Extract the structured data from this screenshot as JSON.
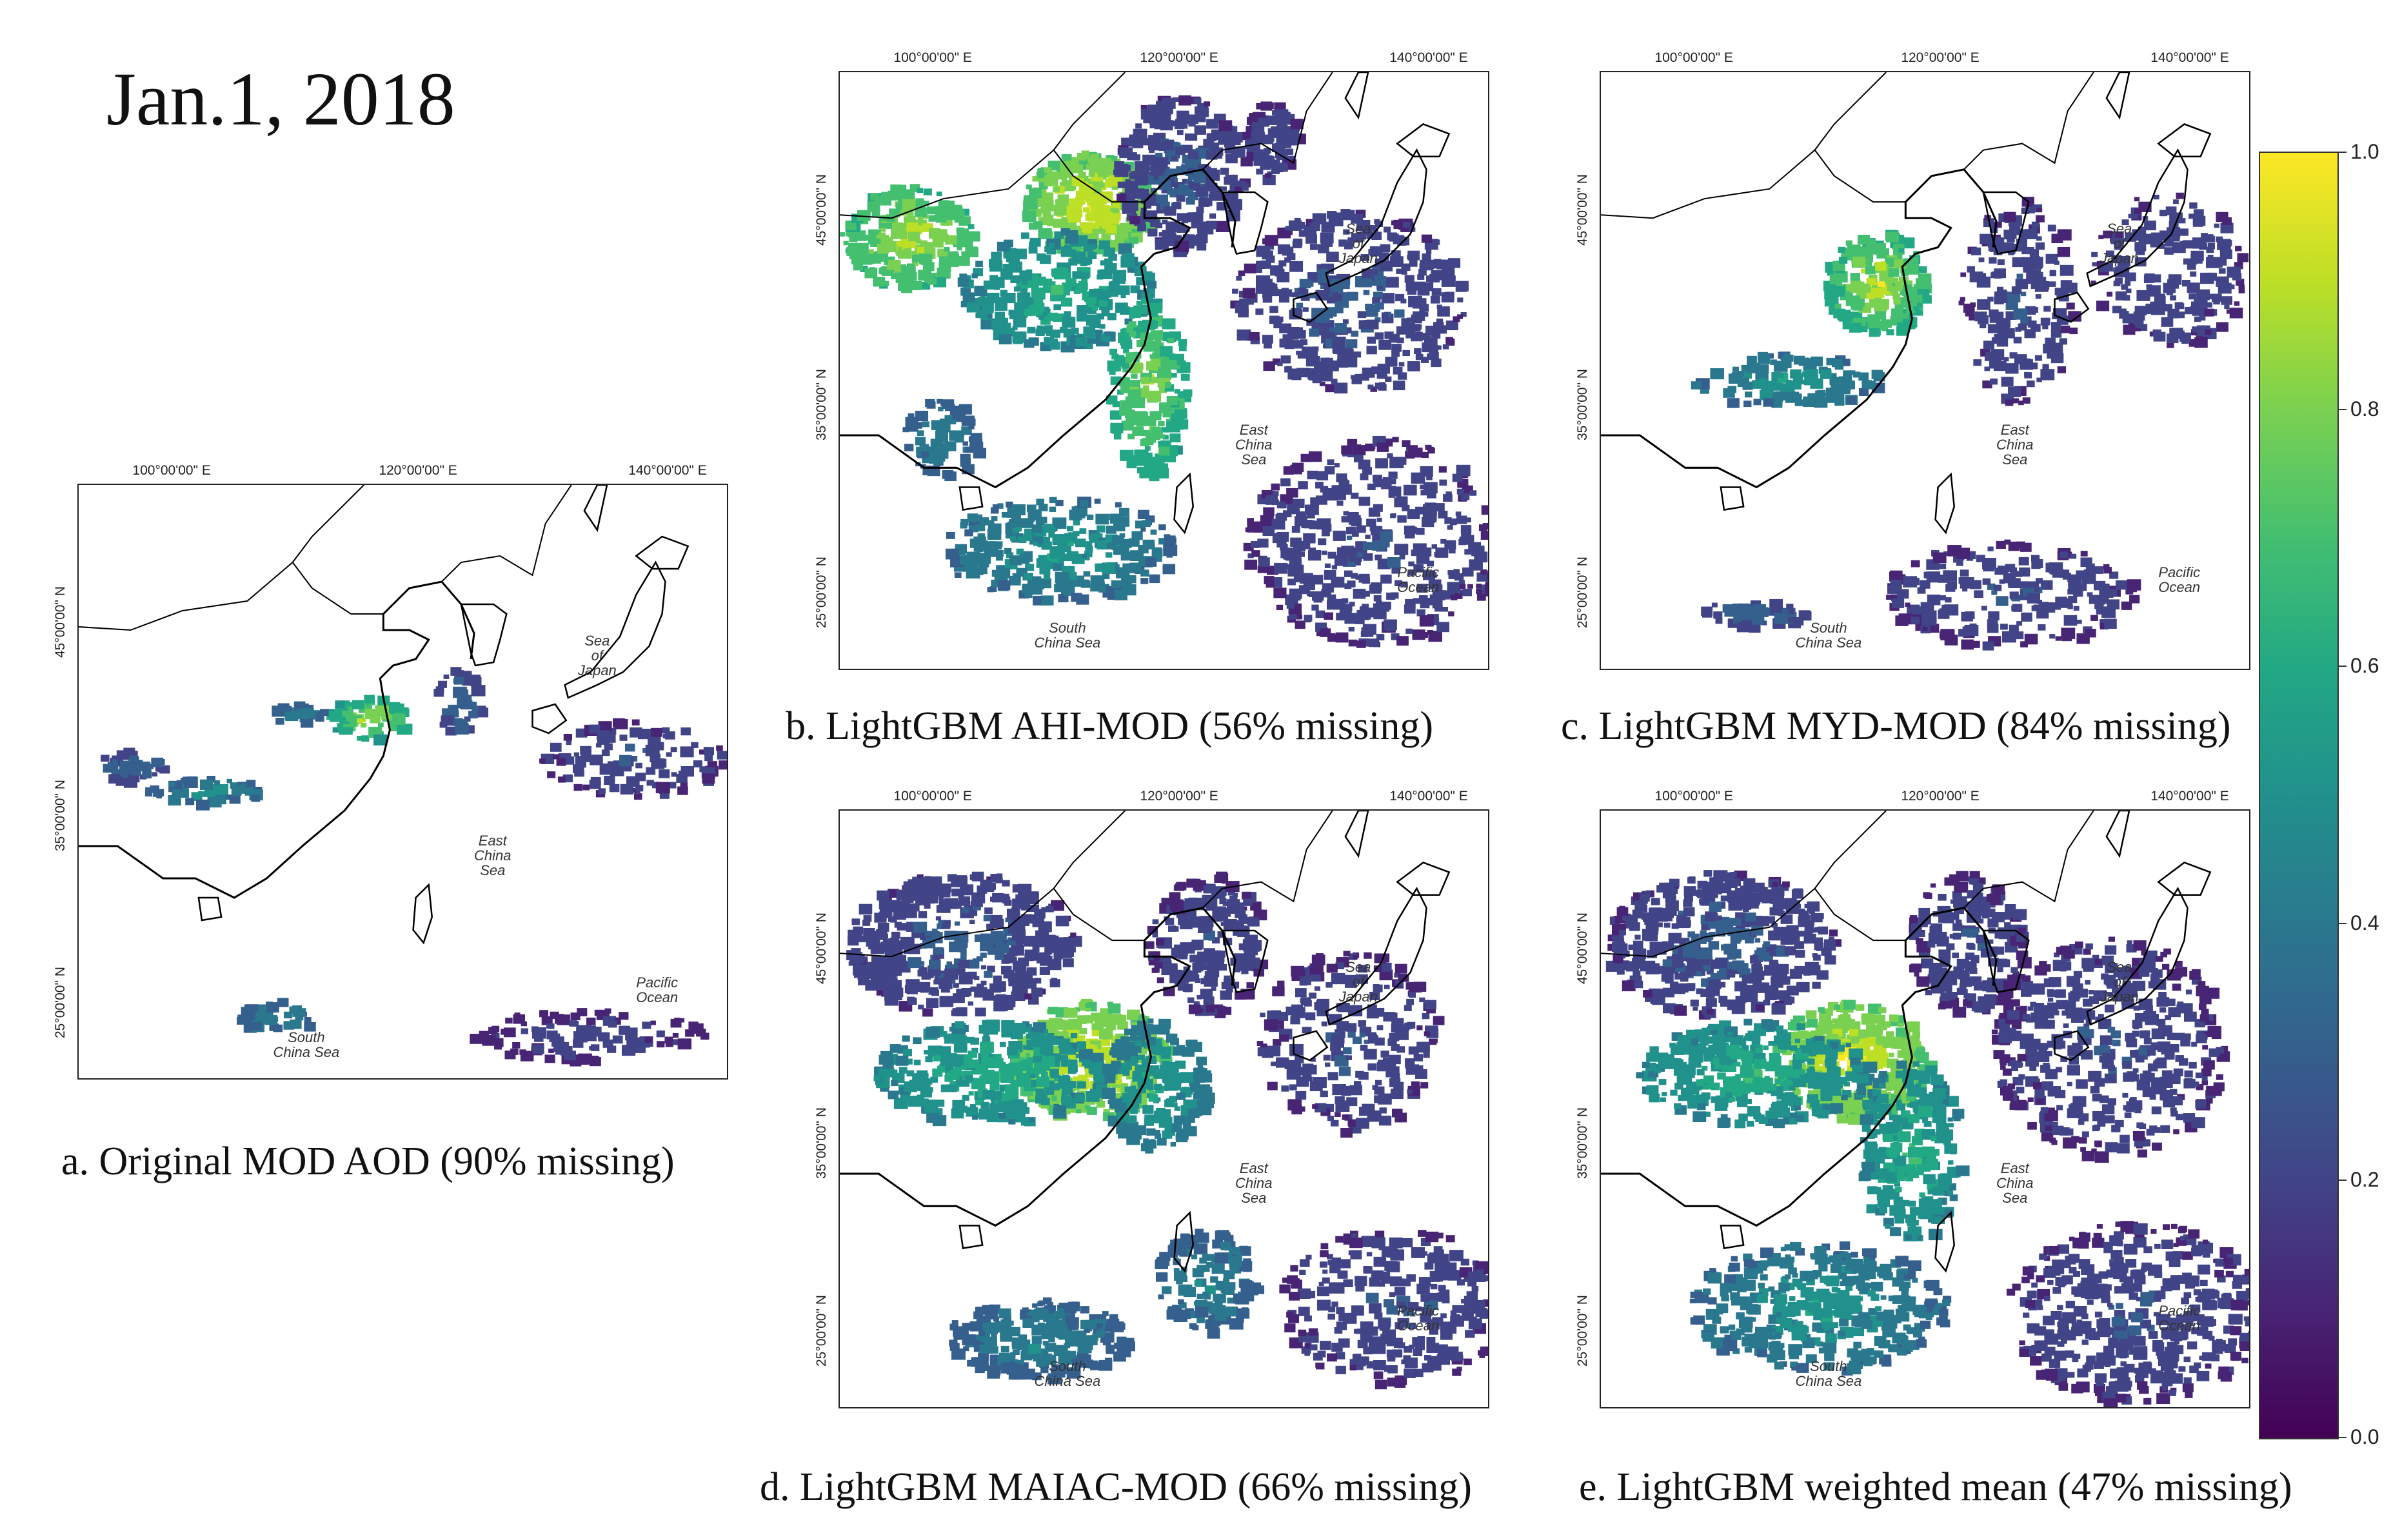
{
  "title": "Jan.1, 2018",
  "lon_labels": [
    "100°00'00\" E",
    "120°00'00\" E",
    "140°00'00\" E"
  ],
  "lat_labels": [
    "45°00'00\" N",
    "35°00'00\" N",
    "25°00'00\" N"
  ],
  "sea_labels": {
    "sea_of_japan": "Sea\nof\nJapan",
    "east_china_sea": "East\nChina\nSea",
    "south_china_sea": "South\nChina Sea",
    "pacific_ocean": "Pacific\nOcean"
  },
  "panels": [
    {
      "id": "a",
      "caption": "a. Original MOD AOD (90% missing)",
      "missing_pct": 90
    },
    {
      "id": "b",
      "caption": "b. LightGBM AHI-MOD (56% missing)",
      "missing_pct": 56
    },
    {
      "id": "c",
      "caption": "c. LightGBM MYD-MOD (84% missing)",
      "missing_pct": 84
    },
    {
      "id": "d",
      "caption": "d. LightGBM MAIAC-MOD (66% missing)",
      "missing_pct": 66
    },
    {
      "id": "e",
      "caption": "e. LightGBM weighted mean (47% missing)",
      "missing_pct": 47
    }
  ],
  "colorbar": {
    "colormap": "viridis",
    "min": 0.0,
    "max": 1.0,
    "ticks": [
      "0.0",
      "0.2",
      "0.4",
      "0.6",
      "0.8",
      "1.0"
    ]
  },
  "colors": {
    "low": "#440154",
    "mid": "#21918c",
    "high": "#fde725",
    "coastline": "#000000"
  }
}
